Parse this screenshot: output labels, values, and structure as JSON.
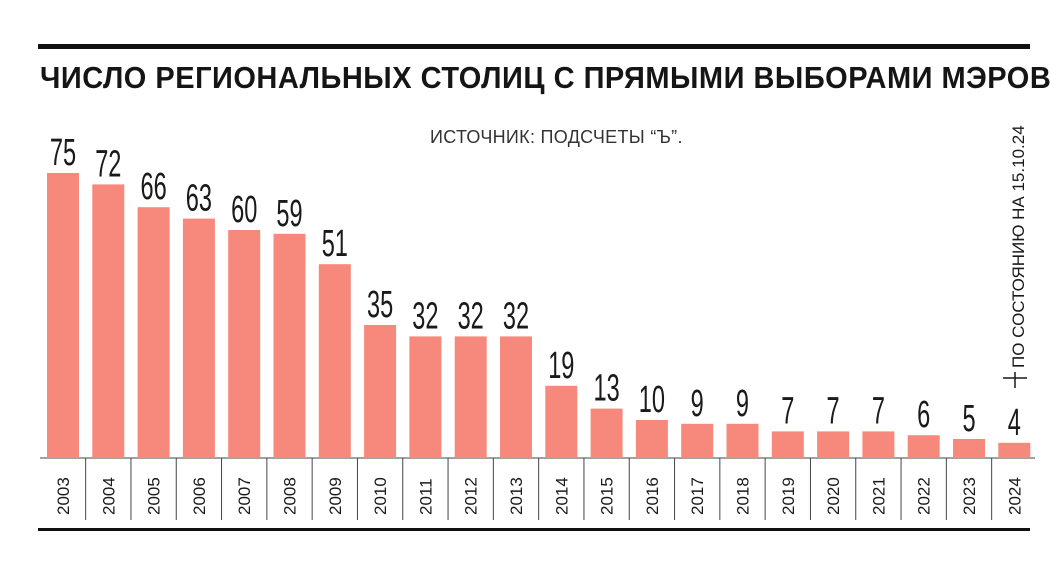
{
  "header": {
    "title": "ЧИСЛО РЕГИОНАЛЬНЫХ СТОЛИЦ С ПРЯМЫМИ ВЫБОРАМИ МЭРОВ",
    "source": "ИСТОЧНИК: ПОДСЧЕТЫ “Ъ”."
  },
  "note": "ПО СОСТОЯНИЮ НА 15.10.24",
  "colors": {
    "bar": "#f6897c",
    "rule": "#111111",
    "tick": "#444444"
  },
  "chart_data": {
    "type": "bar",
    "title": "ЧИСЛО РЕГИОНАЛЬНЫХ СТОЛИЦ С ПРЯМЫМИ ВЫБОРАМИ МЭРОВ",
    "categories": [
      "2003",
      "2004",
      "2005",
      "2006",
      "2007",
      "2008",
      "2009",
      "2010",
      "2011",
      "2012",
      "2013",
      "2014",
      "2015",
      "2016",
      "2017",
      "2018",
      "2019",
      "2020",
      "2021",
      "2022",
      "2023",
      "2024"
    ],
    "values": [
      75,
      72,
      66,
      63,
      60,
      59,
      51,
      35,
      32,
      32,
      32,
      19,
      13,
      10,
      9,
      9,
      7,
      7,
      7,
      6,
      5,
      4
    ],
    "xlabel": "",
    "ylabel": "",
    "ylim": [
      0,
      75
    ],
    "grid": false,
    "data_labels": true,
    "annotation": "ПО СОСТОЯНИЮ НА 15.10.24"
  }
}
